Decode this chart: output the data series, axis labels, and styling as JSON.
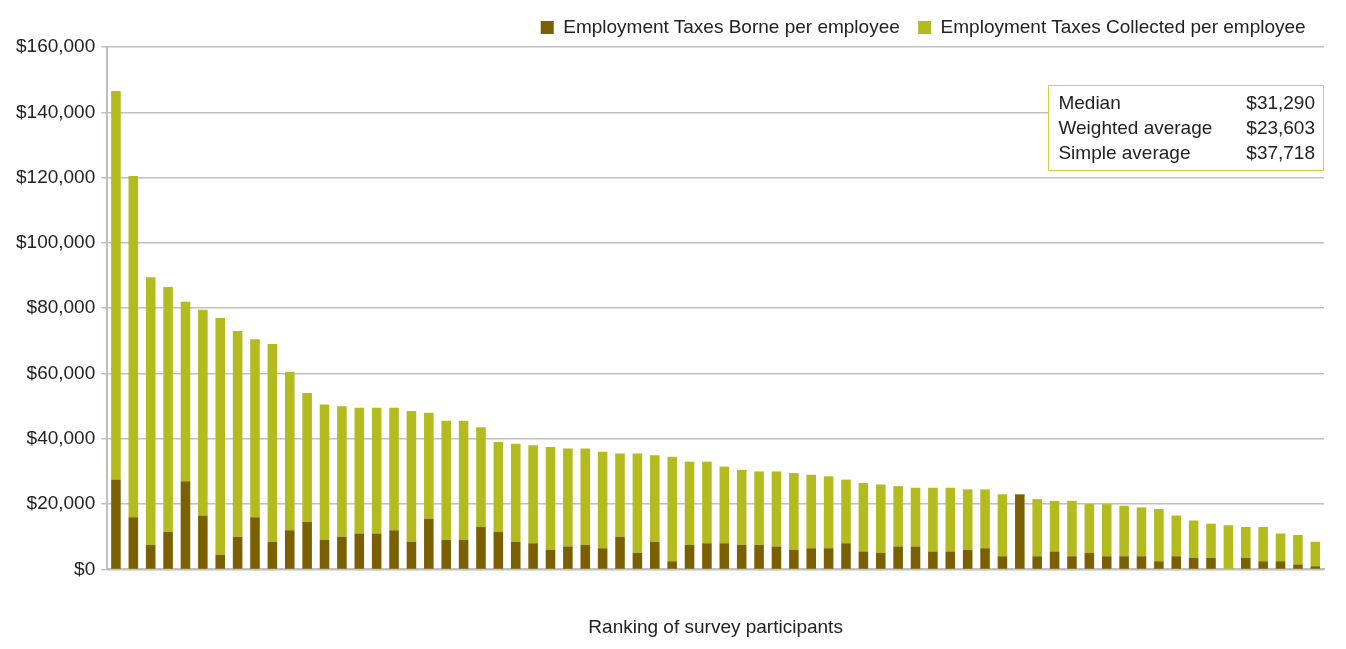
{
  "chart_data": {
    "type": "bar",
    "stacked": true,
    "xlabel": "Ranking of survey participants",
    "legend": "top right",
    "grid": "y",
    "categories": [
      null,
      null,
      null,
      null,
      null,
      null,
      null,
      null,
      null,
      null,
      null,
      null,
      null,
      null,
      null,
      null,
      null,
      null,
      null,
      null,
      null,
      null,
      null,
      null,
      null,
      null,
      null,
      null,
      null,
      null,
      null,
      null,
      null,
      null,
      null,
      null,
      null,
      null,
      null,
      null,
      null,
      null,
      null,
      null,
      null,
      null,
      null,
      null,
      null,
      null,
      null,
      null,
      null,
      null,
      null,
      null,
      null,
      null,
      null,
      null,
      null,
      null,
      null,
      null,
      null,
      null,
      null,
      null,
      null,
      null
    ],
    "series": [
      {
        "name": "Employment Taxes Borne per employee",
        "color": "#7a6000",
        "values": [
          27500,
          16000,
          7500,
          11500,
          27000,
          16500,
          4500,
          10000,
          16000,
          8500,
          12000,
          14500,
          9000,
          10000,
          11000,
          11000,
          12000,
          8500,
          15500,
          9000,
          9000,
          13000,
          11500,
          8500,
          8000,
          6000,
          7000,
          7500,
          6500,
          10000,
          5000,
          8500,
          2500,
          7500,
          8000,
          8000,
          7500,
          7500,
          7000,
          6000,
          6500,
          6500,
          8000,
          5500,
          5000,
          7000,
          7000,
          5500,
          5500,
          6000,
          6500,
          4000,
          23000,
          4000,
          5500,
          4000,
          5000,
          4000,
          4000,
          4000,
          2500,
          4000,
          3500,
          3500,
          0,
          3500,
          2500,
          2500,
          1500,
          1000
        ]
      },
      {
        "name": "Employment Taxes Collected per employee",
        "color": "#b3bb1f",
        "values": [
          119000,
          104500,
          82000,
          75000,
          55000,
          63000,
          72500,
          63000,
          54500,
          60500,
          48500,
          39500,
          41500,
          40000,
          38500,
          38500,
          37500,
          40000,
          32500,
          36500,
          36500,
          30500,
          27500,
          30000,
          30000,
          31500,
          30000,
          29500,
          29500,
          25500,
          30500,
          26500,
          32000,
          25500,
          25000,
          23500,
          23000,
          22500,
          23000,
          23500,
          22500,
          22000,
          19500,
          21000,
          21000,
          18500,
          18000,
          19500,
          19500,
          18500,
          18000,
          19000,
          0,
          17500,
          15500,
          17000,
          15000,
          16000,
          15500,
          15000,
          16000,
          12500,
          11500,
          10500,
          13500,
          9500,
          10500,
          8500,
          9000,
          7500
        ]
      }
    ],
    "ylim": [
      0,
      160000
    ],
    "yticks": [
      {
        "value": 0,
        "label": "$0"
      },
      {
        "value": 20000,
        "label": "$20,000"
      },
      {
        "value": 40000,
        "label": "$40,000"
      },
      {
        "value": 60000,
        "label": "$60,000"
      },
      {
        "value": 80000,
        "label": "$80,000"
      },
      {
        "value": 100000,
        "label": "$100,000"
      },
      {
        "value": 120000,
        "label": "$120,000"
      },
      {
        "value": 140000,
        "label": "$140,000"
      },
      {
        "value": 160000,
        "label": "$160,000"
      }
    ],
    "annotations": [
      "Median",
      "$31,290",
      "Weighted average",
      "$23,603",
      "Simple average",
      "$37,718"
    ]
  }
}
